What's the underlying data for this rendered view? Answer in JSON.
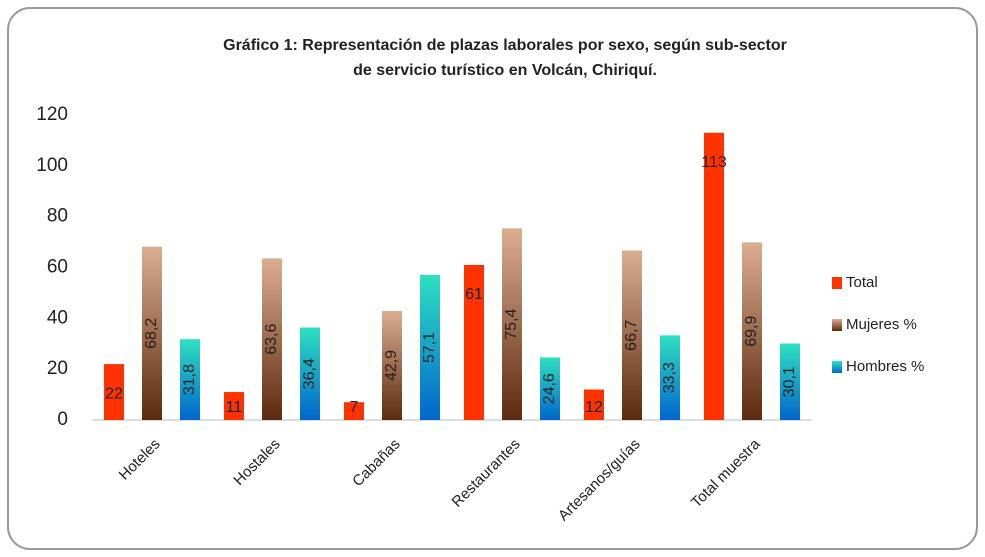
{
  "chart_data": {
    "type": "bar",
    "title": [
      "Gráfico 1: Representación  de plazas laborales por sexo, según sub-sector",
      "de servicio turístico en Volcán, Chiriquí."
    ],
    "categories": [
      "Hoteles",
      "Hostales",
      "Cabañas",
      "Restaurantes",
      "Artesanos/guías",
      "Total muestra"
    ],
    "series": [
      {
        "name": "Total",
        "color": "#ff3300",
        "values": [
          22,
          11,
          7,
          61,
          12,
          113
        ]
      },
      {
        "name": " Mujeres %",
        "color": "#5c2a0c",
        "gradient": [
          "#5c2a0c",
          "#dbae92"
        ],
        "values": [
          68.2,
          63.6,
          42.9,
          75.4,
          66.7,
          69.9
        ],
        "value_labels": [
          "68,2",
          "63,6",
          "42,9",
          "75,4",
          "66,7",
          "69,9"
        ]
      },
      {
        "name": "Hombres %",
        "color": "#0066cc",
        "gradient": [
          "#0066cc",
          "#2ee0c0"
        ],
        "values": [
          31.8,
          36.4,
          57.1,
          24.6,
          33.3,
          30.1
        ],
        "value_labels": [
          "31,8",
          "36,4",
          "57,1",
          "24,6",
          "33,3",
          "30,1"
        ]
      }
    ],
    "ylim": [
      0,
      120
    ],
    "yticks": [
      0,
      20,
      40,
      60,
      80,
      100,
      120
    ],
    "grid": false,
    "legend": "right"
  }
}
